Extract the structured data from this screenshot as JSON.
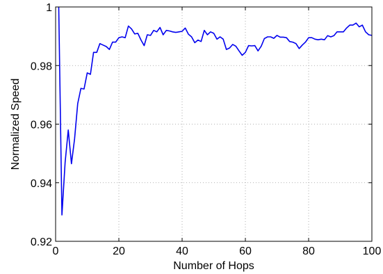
{
  "chart_data": {
    "type": "line",
    "title": "",
    "xlabel": "Number of Hops",
    "ylabel": "Normalized Speed",
    "xlim": [
      0,
      100
    ],
    "ylim": [
      0.92,
      1.0
    ],
    "xticks": [
      0,
      20,
      40,
      60,
      80,
      100
    ],
    "yticks": [
      0.92,
      0.94,
      0.96,
      0.98,
      1.0
    ],
    "xtick_labels": [
      "0",
      "20",
      "40",
      "60",
      "80",
      "100"
    ],
    "ytick_labels": [
      "0.92",
      "0.94",
      "0.96",
      "0.98",
      "1"
    ],
    "grid": true,
    "legend": "none",
    "series": [
      {
        "color": "#0000ee",
        "x": [
          1,
          2,
          3,
          4,
          5,
          6,
          7,
          8,
          9,
          10,
          11,
          12,
          13,
          14,
          15,
          16,
          17,
          18,
          19,
          20,
          21,
          22,
          23,
          24,
          25,
          26,
          27,
          28,
          29,
          30,
          31,
          32,
          33,
          34,
          35,
          36,
          37,
          38,
          39,
          40,
          41,
          42,
          43,
          44,
          45,
          46,
          47,
          48,
          49,
          50,
          51,
          52,
          53,
          54,
          55,
          56,
          57,
          58,
          59,
          60,
          61,
          62,
          63,
          64,
          65,
          66,
          67,
          68,
          69,
          70,
          71,
          72,
          73,
          74,
          75,
          76,
          77,
          78,
          79,
          80,
          81,
          82,
          83,
          84,
          85,
          86,
          87,
          88,
          89,
          90,
          91,
          92,
          93,
          94,
          95,
          96,
          97,
          98,
          99,
          100
        ],
        "values": [
          1.0,
          0.929,
          0.947,
          0.958,
          0.9465,
          0.955,
          0.967,
          0.9722,
          0.972,
          0.9775,
          0.977,
          0.9845,
          0.9845,
          0.9875,
          0.987,
          0.9865,
          0.9855,
          0.988,
          0.988,
          0.9895,
          0.9898,
          0.9895,
          0.9935,
          0.9925,
          0.9908,
          0.991,
          0.9887,
          0.9868,
          0.9905,
          0.9903,
          0.992,
          0.9915,
          0.993,
          0.9905,
          0.992,
          0.9918,
          0.9915,
          0.9913,
          0.9915,
          0.9917,
          0.9928,
          0.9907,
          0.9898,
          0.9878,
          0.9887,
          0.9882,
          0.992,
          0.9905,
          0.9915,
          0.991,
          0.989,
          0.9898,
          0.989,
          0.9855,
          0.986,
          0.9872,
          0.9866,
          0.985,
          0.9835,
          0.9845,
          0.9868,
          0.9867,
          0.9868,
          0.985,
          0.9866,
          0.9892,
          0.9898,
          0.9898,
          0.9893,
          0.9903,
          0.9897,
          0.9897,
          0.9895,
          0.9882,
          0.988,
          0.9875,
          0.9858,
          0.987,
          0.988,
          0.9895,
          0.9895,
          0.989,
          0.9888,
          0.989,
          0.9888,
          0.9902,
          0.9898,
          0.9902,
          0.9915,
          0.9915,
          0.9915,
          0.9928,
          0.9938,
          0.9938,
          0.9945,
          0.9932,
          0.9938,
          0.9915,
          0.9905,
          0.9903
        ]
      }
    ]
  }
}
